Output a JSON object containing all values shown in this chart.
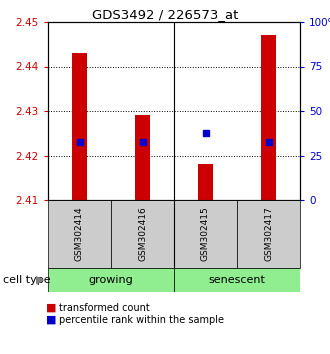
{
  "title": "GDS3492 / 226573_at",
  "samples": [
    "GSM302414",
    "GSM302416",
    "GSM302415",
    "GSM302417"
  ],
  "bar_bottom": 2.41,
  "transformed_counts": [
    2.443,
    2.429,
    2.418,
    2.447
  ],
  "percentile_rank_values": [
    2.423,
    2.423,
    2.425,
    2.423
  ],
  "ylim_left": [
    2.41,
    2.45
  ],
  "ylim_right": [
    0,
    100
  ],
  "yticks_left": [
    2.41,
    2.42,
    2.43,
    2.44,
    2.45
  ],
  "yticks_right": [
    0,
    25,
    50,
    75,
    100
  ],
  "ytick_labels_right": [
    "0",
    "25",
    "50",
    "75",
    "100%"
  ],
  "bar_color": "#CC0000",
  "dot_color": "#0000CC",
  "bar_width": 0.25,
  "left_tick_color": "#CC0000",
  "right_tick_color": "#0000CC",
  "label_box_color": "#cccccc",
  "growing_bg": "#90EE90",
  "cell_type_label": "cell type"
}
